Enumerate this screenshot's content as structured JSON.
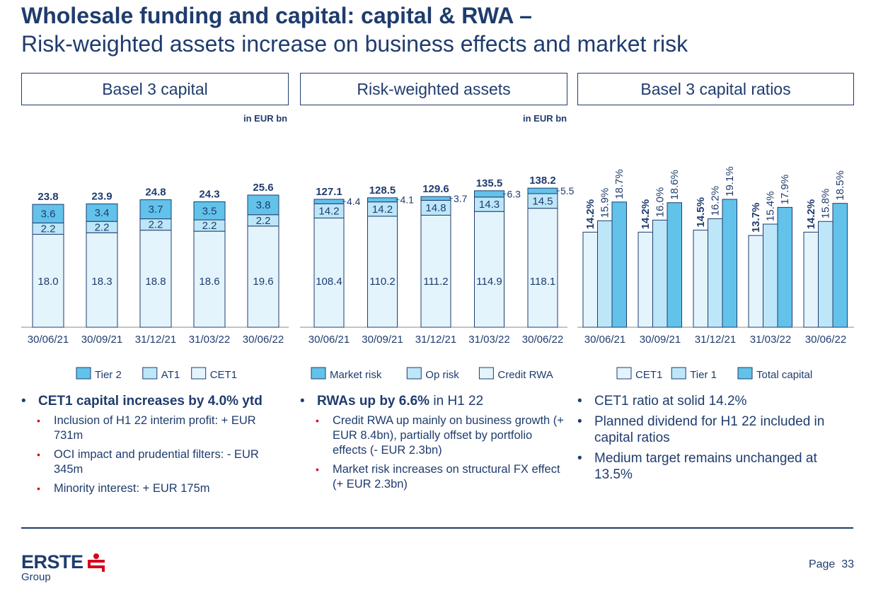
{
  "header": {
    "title": "Wholesale funding and capital: capital & RWA –",
    "subtitle": "Risk-weighted assets increase on business effects and market risk"
  },
  "panels": [
    {
      "title": "Basel 3 capital",
      "unit": "in EUR bn"
    },
    {
      "title": "Risk-weighted assets",
      "unit": "in EUR bn"
    },
    {
      "title": "Basel 3 capital ratios",
      "unit": ""
    }
  ],
  "colors": {
    "dark": "#62c2ea",
    "mid": "#bde6f8",
    "light": "#e3f4fd",
    "text": "#1f3c6e",
    "accent_red": "#d6001c"
  },
  "chart_data": [
    {
      "type": "bar",
      "stacked": true,
      "categories": [
        "30/06/21",
        "30/09/21",
        "31/12/21",
        "31/03/22",
        "30/06/22"
      ],
      "series": [
        {
          "name": "CET1",
          "values": [
            18.0,
            18.3,
            18.8,
            18.6,
            19.6
          ],
          "labels": [
            "18.0",
            "18.3",
            "18.8",
            "18.6",
            "19.6"
          ]
        },
        {
          "name": "AT1",
          "values": [
            2.2,
            2.2,
            2.2,
            2.2,
            2.2
          ],
          "labels": [
            "2.2",
            "2.2",
            "2.2",
            "2.2",
            "2.2"
          ]
        },
        {
          "name": "Tier 2",
          "values": [
            3.6,
            3.4,
            3.7,
            3.5,
            3.8
          ],
          "labels": [
            "3.6",
            "3.4",
            "3.7",
            "3.5",
            "3.8"
          ]
        }
      ],
      "totals": [
        "23.8",
        "23.9",
        "24.8",
        "24.3",
        "25.6"
      ],
      "legend": [
        "Tier 2",
        "AT1",
        "CET1"
      ],
      "ylim": [
        0,
        30
      ]
    },
    {
      "type": "bar",
      "stacked": true,
      "categories": [
        "30/06/21",
        "30/09/21",
        "31/12/21",
        "31/03/22",
        "30/06/22"
      ],
      "series": [
        {
          "name": "Credit RWA",
          "values": [
            108.4,
            110.2,
            111.2,
            114.9,
            118.1
          ],
          "labels": [
            "108.4",
            "110.2",
            "111.2",
            "114.9",
            "118.1"
          ]
        },
        {
          "name": "Op risk",
          "values": [
            14.2,
            14.2,
            14.8,
            14.3,
            14.5
          ],
          "labels": [
            "14.2",
            "14.2",
            "14.8",
            "14.3",
            "14.5"
          ]
        },
        {
          "name": "Market risk",
          "values": [
            4.4,
            4.1,
            3.7,
            6.3,
            5.5
          ],
          "labels": [
            "4.4",
            "4.1",
            "3.7",
            "6.3",
            "5.5"
          ]
        }
      ],
      "totals": [
        "127.1",
        "128.5",
        "129.6",
        "135.5",
        "138.2"
      ],
      "legend": [
        "Market risk",
        "Op risk",
        "Credit RWA"
      ],
      "ylim": [
        0,
        160
      ]
    },
    {
      "type": "bar",
      "stacked": false,
      "categories": [
        "30/06/21",
        "30/09/21",
        "31/12/21",
        "31/03/22",
        "30/06/22"
      ],
      "series": [
        {
          "name": "CET1",
          "values": [
            14.2,
            14.2,
            14.5,
            13.7,
            14.2
          ],
          "labels": [
            "14.2%",
            "14.2%",
            "14.5%",
            "13.7%",
            "14.2%"
          ]
        },
        {
          "name": "Tier 1",
          "values": [
            15.9,
            16.0,
            16.2,
            15.4,
            15.8
          ],
          "labels": [
            "15.9%",
            "16.0%",
            "16.2%",
            "15.4%",
            "15.8%"
          ]
        },
        {
          "name": "Total capital",
          "values": [
            18.7,
            18.6,
            19.1,
            17.9,
            18.5
          ],
          "labels": [
            "18.7%",
            "18.6%",
            "19.1%",
            "17.9%",
            "18.5%"
          ]
        }
      ],
      "legend": [
        "CET1",
        "Tier 1",
        "Total capital"
      ],
      "ylim": [
        0,
        36
      ]
    }
  ],
  "bullets": [
    {
      "main_bold": "CET1 capital increases by 4.0% ytd",
      "main_rest": "",
      "subs": [
        "Inclusion of H1 22 interim profit: + EUR 731m",
        "OCI impact and prudential filters: - EUR 345m",
        "Minority interest: + EUR 175m"
      ]
    },
    {
      "main_bold": "RWAs up by 6.6%",
      "main_rest": " in H1 22",
      "subs": [
        "Credit RWA up mainly on business growth (+ EUR 8.4bn), partially offset by portfolio effects (- EUR 2.3bn)",
        "Market risk increases on structural FX effect (+ EUR 2.3bn)"
      ]
    },
    {
      "main_items": [
        "CET1 ratio at solid 14.2%",
        "Planned dividend for H1 22 included in capital ratios",
        "Medium target remains unchanged at 13.5%"
      ]
    }
  ],
  "footer": {
    "logo_text": "ERSTE",
    "logo_sub": "Group",
    "page_label": "Page",
    "page_number": "33"
  }
}
